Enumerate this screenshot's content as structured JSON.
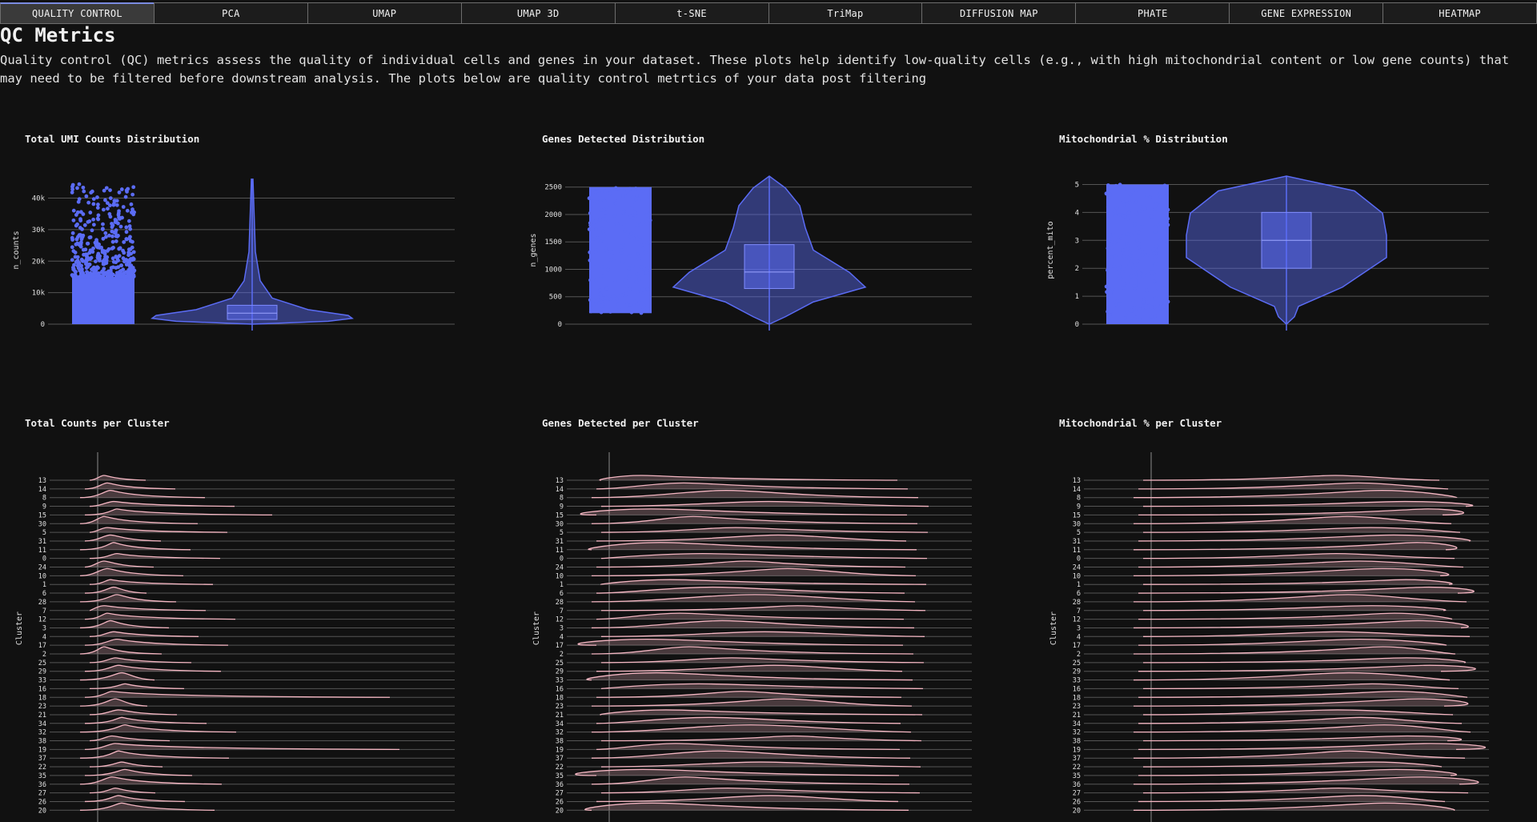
{
  "tabs": [
    {
      "label": "QUALITY CONTROL",
      "active": true
    },
    {
      "label": "PCA"
    },
    {
      "label": "UMAP"
    },
    {
      "label": "UMAP 3D"
    },
    {
      "label": "t-SNE"
    },
    {
      "label": "TriMap"
    },
    {
      "label": "DIFFUSION MAP"
    },
    {
      "label": "PHATE"
    },
    {
      "label": "GENE EXPRESSION"
    },
    {
      "label": "HEATMAP"
    }
  ],
  "page": {
    "title": "QC Metrics",
    "description": "Quality control (QC) metrics assess the quality of individual cells and genes in your dataset. These plots help identify low-quality cells (e.g., with high mitochondrial content or low gene counts) that may need to be filtered before downstream analysis. The plots below are quality control metrtics of your data post filtering"
  },
  "colors": {
    "accent": "#5b6cf5",
    "ridge": "#f4b6c2",
    "grid": "#555555",
    "background": "#111111"
  },
  "chart_data": [
    {
      "type": "violin",
      "title": "Total UMI Counts Distribution",
      "ylabel": "n_counts",
      "yticks": [
        "0",
        "10k",
        "20k",
        "30k",
        "40k"
      ],
      "ylim": [
        0,
        47000
      ],
      "points_range": [
        0,
        45000
      ],
      "median": 3500,
      "q1": 1500,
      "q3": 6000,
      "whisker_high": 46000
    },
    {
      "type": "violin",
      "title": "Genes Detected Distribution",
      "ylabel": "n_genes",
      "yticks": [
        "0",
        "500",
        "1000",
        "1500",
        "2000",
        "2500"
      ],
      "ylim": [
        0,
        2700
      ],
      "points_range": [
        200,
        2500
      ],
      "median": 950,
      "q1": 650,
      "q3": 1450,
      "whisker_high": 2700
    },
    {
      "type": "violin",
      "title": "Mitochondrial % Distribution",
      "ylabel": "percent_mito",
      "yticks": [
        "0",
        "1",
        "2",
        "3",
        "4",
        "5"
      ],
      "ylim": [
        0,
        5.3
      ],
      "points_range": [
        0,
        5
      ],
      "median": 3,
      "q1": 2,
      "q3": 4,
      "whisker_high": 5.3
    },
    {
      "type": "ridgeline",
      "title": "Total Counts per Cluster",
      "ylabel": "Cluster",
      "clusters": [
        "13",
        "14",
        "8",
        "9",
        "15",
        "30",
        "5",
        "31",
        "11",
        "0",
        "24",
        "10",
        "1",
        "6",
        "28",
        "7",
        "12",
        "3",
        "4",
        "17",
        "2",
        "25",
        "29",
        "33",
        "16",
        "18",
        "23",
        "21",
        "34",
        "32",
        "38",
        "19",
        "37",
        "22",
        "35",
        "36",
        "27",
        "26",
        "20"
      ]
    },
    {
      "type": "ridgeline",
      "title": "Genes Detected per Cluster",
      "ylabel": "Cluster",
      "clusters": [
        "13",
        "14",
        "8",
        "9",
        "15",
        "30",
        "5",
        "31",
        "11",
        "0",
        "24",
        "10",
        "1",
        "6",
        "28",
        "7",
        "12",
        "3",
        "4",
        "17",
        "2",
        "25",
        "29",
        "33",
        "16",
        "18",
        "23",
        "21",
        "34",
        "32",
        "38",
        "19",
        "37",
        "22",
        "35",
        "36",
        "27",
        "26",
        "20"
      ]
    },
    {
      "type": "ridgeline",
      "title": "Mitochondrial % per Cluster",
      "ylabel": "Cluster",
      "clusters": [
        "13",
        "14",
        "8",
        "9",
        "15",
        "30",
        "5",
        "31",
        "11",
        "0",
        "24",
        "10",
        "1",
        "6",
        "28",
        "7",
        "12",
        "3",
        "4",
        "17",
        "2",
        "25",
        "29",
        "33",
        "16",
        "18",
        "23",
        "21",
        "34",
        "32",
        "38",
        "19",
        "37",
        "22",
        "35",
        "36",
        "27",
        "26",
        "20"
      ]
    }
  ]
}
